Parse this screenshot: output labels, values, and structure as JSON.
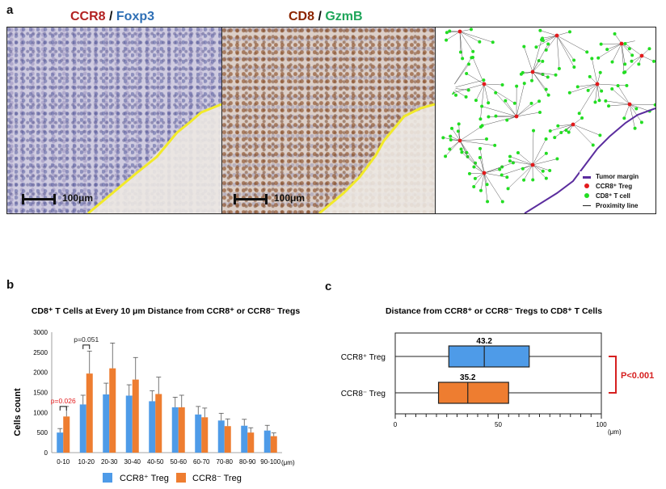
{
  "panel_a": {
    "letter": "a",
    "image1_title_part1": "CCR8",
    "image1_title_sep": " / ",
    "image1_title_part2": "Foxp3",
    "image2_title_part1": "CD8",
    "image2_title_sep": " / ",
    "image2_title_part2": "GzmB",
    "scale_label_1": "100μm",
    "scale_label_2": "100μm",
    "legend": [
      {
        "label": "Tumor margin",
        "color": "#5b2d9e"
      },
      {
        "label": "CCR8⁺ Treg",
        "color": "#e31a1c"
      },
      {
        "label": "CD8⁺ T cell",
        "color": "#22dd22"
      },
      {
        "label": "Proximity line",
        "color": "#222222"
      }
    ],
    "colors": {
      "ccr8": "#b22222",
      "foxp3": "#2e6fb5",
      "cd8": "#8b2500",
      "gzmb": "#1fa55a",
      "margin_line": "#f2ea2a"
    }
  },
  "panel_b": {
    "letter": "b",
    "bracket1_label": "p=0.026",
    "bracket2_label": "p=0.051",
    "bracket1_color": "#e31a1c",
    "bracket2_color": "#222222",
    "unit": "(μm)",
    "chart_data": {
      "type": "bar",
      "title": "CD8⁺ T Cells at Every 10 μm Distance from CCR8⁺ or CCR8⁻ Tregs",
      "xlabel": "",
      "ylabel": "Cells count",
      "ylim": [
        0,
        3000
      ],
      "yticks": [
        0,
        500,
        1000,
        1500,
        2000,
        2500,
        3000
      ],
      "categories": [
        "0-10",
        "10-20",
        "20-30",
        "30-40",
        "40-50",
        "50-60",
        "60-70",
        "70-80",
        "80-90",
        "90-100"
      ],
      "series": [
        {
          "name": "CCR8⁺ Treg",
          "color": "#4e9be8",
          "values": [
            500,
            1200,
            1450,
            1420,
            1280,
            1130,
            950,
            800,
            670,
            550
          ],
          "errors": [
            100,
            230,
            280,
            270,
            260,
            250,
            200,
            180,
            160,
            130
          ]
        },
        {
          "name": "CCR8⁻ Treg",
          "color": "#ee7d30",
          "values": [
            900,
            1970,
            2100,
            1820,
            1460,
            1130,
            880,
            660,
            500,
            410
          ],
          "errors": [
            250,
            560,
            630,
            550,
            420,
            300,
            230,
            180,
            120,
            80
          ]
        }
      ],
      "legend_position": "bottom",
      "grid": false
    }
  },
  "panel_c": {
    "letter": "c",
    "p_label": "P<0.001",
    "p_color": "#d62020",
    "unit": "(μm)",
    "chart_data": {
      "type": "box",
      "title": "Distance from CCR8⁺ or CCR8⁻ Tregs to CD8⁺ T Cells",
      "xlim": [
        0,
        100
      ],
      "xticks": [
        0,
        50,
        100
      ],
      "boxes": [
        {
          "name": "CCR8⁺ Treg",
          "min": 0,
          "q1": 26,
          "median": 43.2,
          "q3": 65,
          "max": 100,
          "median_label": "43.2",
          "color": "#4e9be8"
        },
        {
          "name": "CCR8⁻ Treg",
          "min": 0,
          "q1": 21,
          "median": 35.2,
          "q3": 55,
          "max": 100,
          "median_label": "35.2",
          "color": "#ee7d30"
        }
      ]
    }
  }
}
